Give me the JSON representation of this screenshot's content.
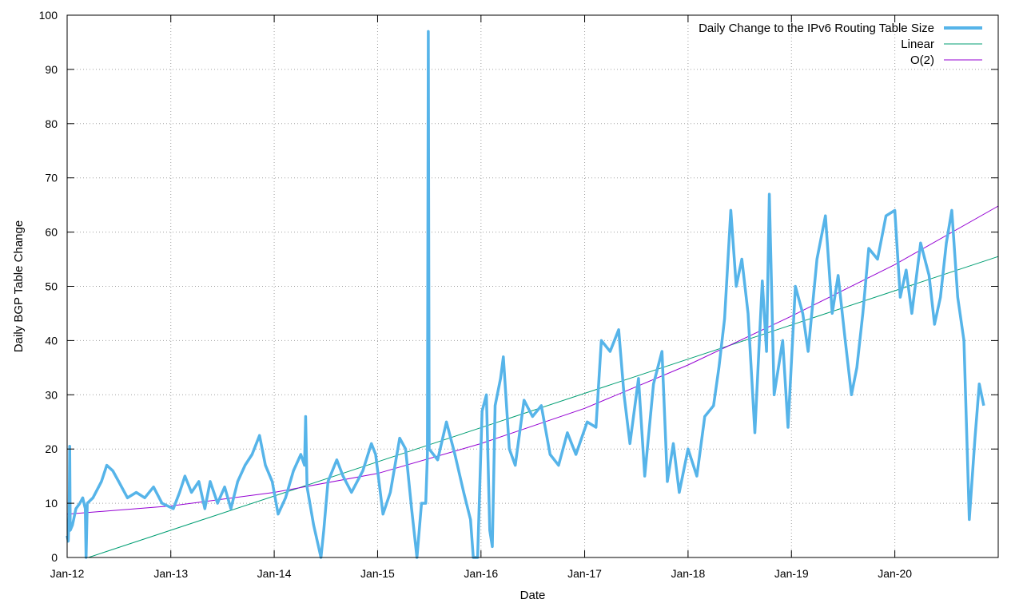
{
  "chart_data": {
    "type": "line",
    "xlabel": "Date",
    "ylabel": "Daily BGP Table Change",
    "xlim": [
      "2012-01-01",
      "2020-12-31"
    ],
    "ylim": [
      0,
      100
    ],
    "grid": true,
    "legend_position": "top-right",
    "y_ticks": [
      0,
      10,
      20,
      30,
      40,
      50,
      60,
      70,
      80,
      90,
      100
    ],
    "x_ticks": [
      {
        "date": "2012-01-01",
        "label": "Jan-12"
      },
      {
        "date": "2013-01-01",
        "label": "Jan-13"
      },
      {
        "date": "2014-01-01",
        "label": "Jan-14"
      },
      {
        "date": "2015-01-01",
        "label": "Jan-15"
      },
      {
        "date": "2016-01-01",
        "label": "Jan-16"
      },
      {
        "date": "2017-01-01",
        "label": "Jan-17"
      },
      {
        "date": "2018-01-01",
        "label": "Jan-18"
      },
      {
        "date": "2019-01-01",
        "label": "Jan-19"
      },
      {
        "date": "2020-01-01",
        "label": "Jan-20"
      }
    ],
    "series": [
      {
        "name": "Daily Change to the IPv6 Routing Table Size",
        "color": "#56b4e9",
        "style": "thick",
        "points": [
          [
            "2012-01-01",
            4
          ],
          [
            "2012-01-05",
            3
          ],
          [
            "2012-01-08",
            8
          ],
          [
            "2012-01-10",
            20.5
          ],
          [
            "2012-01-12",
            5
          ],
          [
            "2012-01-20",
            6
          ],
          [
            "2012-02-01",
            9
          ],
          [
            "2012-02-15",
            10
          ],
          [
            "2012-02-25",
            11
          ],
          [
            "2012-03-05",
            9
          ],
          [
            "2012-03-08",
            0
          ],
          [
            "2012-03-12",
            10
          ],
          [
            "2012-04-01",
            11
          ],
          [
            "2012-05-01",
            14
          ],
          [
            "2012-05-20",
            17
          ],
          [
            "2012-06-10",
            16
          ],
          [
            "2012-07-01",
            14
          ],
          [
            "2012-08-01",
            11
          ],
          [
            "2012-09-01",
            12
          ],
          [
            "2012-10-01",
            11
          ],
          [
            "2012-11-01",
            13
          ],
          [
            "2012-12-01",
            10
          ],
          [
            "2013-01-10",
            9
          ],
          [
            "2013-02-01",
            12
          ],
          [
            "2013-02-20",
            15
          ],
          [
            "2013-03-15",
            12
          ],
          [
            "2013-04-10",
            14
          ],
          [
            "2013-05-01",
            9
          ],
          [
            "2013-05-20",
            14
          ],
          [
            "2013-06-15",
            10
          ],
          [
            "2013-07-10",
            13
          ],
          [
            "2013-08-01",
            9
          ],
          [
            "2013-08-25",
            14
          ],
          [
            "2013-09-20",
            17
          ],
          [
            "2013-10-15",
            19
          ],
          [
            "2013-11-10",
            22.5
          ],
          [
            "2013-12-01",
            17
          ],
          [
            "2013-12-25",
            14
          ],
          [
            "2014-01-15",
            8
          ],
          [
            "2014-02-10",
            11
          ],
          [
            "2014-03-10",
            16
          ],
          [
            "2014-04-05",
            19
          ],
          [
            "2014-04-18",
            17
          ],
          [
            "2014-04-22",
            26
          ],
          [
            "2014-04-27",
            13
          ],
          [
            "2014-05-20",
            6
          ],
          [
            "2014-06-15",
            0
          ],
          [
            "2014-06-25",
            5
          ],
          [
            "2014-07-10",
            14
          ],
          [
            "2014-08-10",
            18
          ],
          [
            "2014-09-01",
            15
          ],
          [
            "2014-10-01",
            12
          ],
          [
            "2014-11-10",
            16
          ],
          [
            "2014-12-10",
            21
          ],
          [
            "2014-12-25",
            19
          ],
          [
            "2015-01-20",
            8
          ],
          [
            "2015-02-15",
            12
          ],
          [
            "2015-03-20",
            22
          ],
          [
            "2015-04-10",
            20
          ],
          [
            "2015-05-01",
            9
          ],
          [
            "2015-05-20",
            0
          ],
          [
            "2015-06-05",
            10
          ],
          [
            "2015-06-20",
            10
          ],
          [
            "2015-06-26",
            19
          ],
          [
            "2015-06-29",
            97
          ],
          [
            "2015-07-02",
            20
          ],
          [
            "2015-08-01",
            18
          ],
          [
            "2015-09-01",
            25
          ],
          [
            "2015-10-01",
            19
          ],
          [
            "2015-11-01",
            12
          ],
          [
            "2015-11-25",
            7
          ],
          [
            "2015-12-05",
            0
          ],
          [
            "2015-12-20",
            0
          ],
          [
            "2016-01-05",
            27
          ],
          [
            "2016-01-20",
            30
          ],
          [
            "2016-02-01",
            5
          ],
          [
            "2016-02-10",
            2
          ],
          [
            "2016-02-20",
            28
          ],
          [
            "2016-03-10",
            33
          ],
          [
            "2016-03-20",
            37
          ],
          [
            "2016-04-10",
            20
          ],
          [
            "2016-05-01",
            17
          ],
          [
            "2016-06-01",
            29
          ],
          [
            "2016-07-01",
            26
          ],
          [
            "2016-08-01",
            28
          ],
          [
            "2016-09-01",
            19
          ],
          [
            "2016-10-01",
            17
          ],
          [
            "2016-11-01",
            23
          ],
          [
            "2016-12-01",
            19
          ],
          [
            "2017-01-10",
            25
          ],
          [
            "2017-02-10",
            24
          ],
          [
            "2017-03-01",
            40
          ],
          [
            "2017-04-01",
            38
          ],
          [
            "2017-05-01",
            42
          ],
          [
            "2017-05-20",
            30
          ],
          [
            "2017-06-10",
            21
          ],
          [
            "2017-07-10",
            33
          ],
          [
            "2017-08-01",
            15
          ],
          [
            "2017-09-01",
            32
          ],
          [
            "2017-10-01",
            38
          ],
          [
            "2017-10-20",
            14
          ],
          [
            "2017-11-10",
            21
          ],
          [
            "2017-12-01",
            12
          ],
          [
            "2018-01-01",
            20
          ],
          [
            "2018-02-01",
            15
          ],
          [
            "2018-03-01",
            26
          ],
          [
            "2018-04-01",
            28
          ],
          [
            "2018-04-20",
            35
          ],
          [
            "2018-05-10",
            44
          ],
          [
            "2018-06-01",
            64
          ],
          [
            "2018-06-20",
            50
          ],
          [
            "2018-07-10",
            55
          ],
          [
            "2018-08-01",
            45
          ],
          [
            "2018-08-25",
            23
          ],
          [
            "2018-09-20",
            51
          ],
          [
            "2018-10-05",
            38
          ],
          [
            "2018-10-15",
            67
          ],
          [
            "2018-11-01",
            30
          ],
          [
            "2018-12-01",
            40
          ],
          [
            "2018-12-20",
            24
          ],
          [
            "2019-01-15",
            50
          ],
          [
            "2019-02-10",
            45
          ],
          [
            "2019-03-01",
            38
          ],
          [
            "2019-04-01",
            55
          ],
          [
            "2019-05-01",
            63
          ],
          [
            "2019-05-25",
            45
          ],
          [
            "2019-06-15",
            52
          ],
          [
            "2019-07-10",
            40
          ],
          [
            "2019-08-01",
            30
          ],
          [
            "2019-08-20",
            35
          ],
          [
            "2019-09-10",
            45
          ],
          [
            "2019-10-01",
            57
          ],
          [
            "2019-11-01",
            55
          ],
          [
            "2019-12-01",
            63
          ],
          [
            "2020-01-01",
            64
          ],
          [
            "2020-01-20",
            48
          ],
          [
            "2020-02-10",
            53
          ],
          [
            "2020-03-01",
            45
          ],
          [
            "2020-04-01",
            58
          ],
          [
            "2020-05-01",
            52
          ],
          [
            "2020-05-20",
            43
          ],
          [
            "2020-06-10",
            48
          ],
          [
            "2020-07-01",
            58
          ],
          [
            "2020-07-20",
            64
          ],
          [
            "2020-08-10",
            48
          ],
          [
            "2020-09-01",
            40
          ],
          [
            "2020-09-20",
            7
          ],
          [
            "2020-10-10",
            22
          ],
          [
            "2020-10-25",
            32
          ],
          [
            "2020-11-10",
            28
          ]
        ]
      },
      {
        "name": "Linear",
        "color": "#009e73",
        "style": "thin",
        "points": [
          [
            "2012-03-16",
            0
          ],
          [
            "2020-12-31",
            55.5
          ]
        ]
      },
      {
        "name": "O(2)",
        "color": "#9400d3",
        "style": "thin",
        "points": [
          [
            "2012-01-01",
            8
          ],
          [
            "2013-01-01",
            9.5
          ],
          [
            "2014-01-01",
            12
          ],
          [
            "2015-01-01",
            15.5
          ],
          [
            "2016-01-01",
            21
          ],
          [
            "2017-01-01",
            27.5
          ],
          [
            "2018-01-01",
            35.5
          ],
          [
            "2019-01-01",
            44.5
          ],
          [
            "2020-01-01",
            54
          ],
          [
            "2020-12-31",
            64.8
          ]
        ]
      }
    ]
  }
}
